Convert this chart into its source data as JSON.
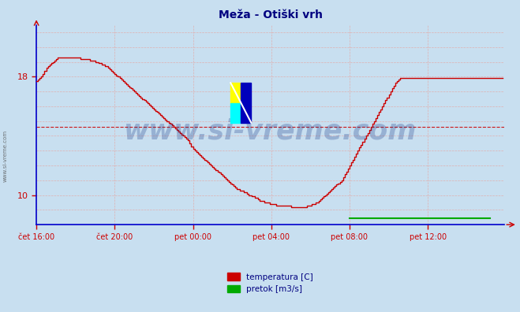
{
  "title": "Meža - Otiški vrh",
  "title_color": "#000080",
  "title_fontsize": 10,
  "bg_color": "#c8dff0",
  "plot_bg_color": "#c8dff0",
  "axis_color": "#0000cc",
  "tick_color": "#cc0000",
  "label_color": "#000080",
  "x_tick_labels": [
    "čet 16:00",
    "čet 20:00",
    "pet 00:00",
    "pet 04:00",
    "pet 08:00",
    "pet 12:00"
  ],
  "x_tick_positions": [
    0,
    48,
    96,
    144,
    192,
    240
  ],
  "yticks": [
    10,
    18
  ],
  "ylim": [
    8.0,
    21.5
  ],
  "xlim": [
    0,
    287
  ],
  "avg_line_y": 14.6,
  "avg_line_color": "#cc0000",
  "watermark": "www.si-vreme.com",
  "watermark_color": "#1a3a8a",
  "watermark_alpha": 0.28,
  "legend_labels": [
    "temperatura [C]",
    "pretok [m3/s]"
  ],
  "legend_colors": [
    "#cc0000",
    "#00aa00"
  ],
  "temp_color": "#cc0000",
  "flow_color": "#00aa00",
  "temp_linewidth": 1.0,
  "flow_linewidth": 1.5,
  "temp_data": [
    17.7,
    17.8,
    17.9,
    18.0,
    18.2,
    18.4,
    18.6,
    18.7,
    18.8,
    18.9,
    19.0,
    19.1,
    19.2,
    19.3,
    19.3,
    19.3,
    19.3,
    19.3,
    19.3,
    19.3,
    19.3,
    19.3,
    19.3,
    19.3,
    19.3,
    19.3,
    19.3,
    19.2,
    19.2,
    19.2,
    19.2,
    19.2,
    19.2,
    19.1,
    19.1,
    19.1,
    19.0,
    19.0,
    18.9,
    18.9,
    18.8,
    18.8,
    18.7,
    18.7,
    18.6,
    18.5,
    18.4,
    18.3,
    18.2,
    18.1,
    18.0,
    17.9,
    17.8,
    17.7,
    17.6,
    17.5,
    17.4,
    17.3,
    17.2,
    17.1,
    17.0,
    16.9,
    16.8,
    16.7,
    16.6,
    16.5,
    16.4,
    16.3,
    16.2,
    16.1,
    16.0,
    15.9,
    15.8,
    15.7,
    15.6,
    15.5,
    15.4,
    15.3,
    15.2,
    15.1,
    15.0,
    14.9,
    14.8,
    14.7,
    14.6,
    14.5,
    14.4,
    14.3,
    14.2,
    14.1,
    14.0,
    13.9,
    13.8,
    13.7,
    13.5,
    13.3,
    13.1,
    13.0,
    12.9,
    12.8,
    12.7,
    12.6,
    12.5,
    12.4,
    12.3,
    12.2,
    12.1,
    12.0,
    11.9,
    11.8,
    11.7,
    11.6,
    11.5,
    11.4,
    11.3,
    11.2,
    11.1,
    11.0,
    10.9,
    10.8,
    10.7,
    10.6,
    10.5,
    10.4,
    10.4,
    10.3,
    10.3,
    10.2,
    10.2,
    10.1,
    10.0,
    10.0,
    9.9,
    9.9,
    9.8,
    9.8,
    9.7,
    9.6,
    9.6,
    9.6,
    9.5,
    9.5,
    9.5,
    9.4,
    9.4,
    9.4,
    9.4,
    9.3,
    9.3,
    9.3,
    9.3,
    9.3,
    9.3,
    9.3,
    9.3,
    9.3,
    9.2,
    9.2,
    9.2,
    9.2,
    9.2,
    9.2,
    9.2,
    9.2,
    9.2,
    9.2,
    9.3,
    9.3,
    9.3,
    9.4,
    9.4,
    9.5,
    9.5,
    9.6,
    9.7,
    9.8,
    9.9,
    10.0,
    10.1,
    10.2,
    10.3,
    10.4,
    10.5,
    10.6,
    10.7,
    10.8,
    10.9,
    11.0,
    11.2,
    11.4,
    11.6,
    11.8,
    12.0,
    12.2,
    12.4,
    12.6,
    12.8,
    13.0,
    13.2,
    13.4,
    13.6,
    13.8,
    14.0,
    14.2,
    14.4,
    14.6,
    14.8,
    15.0,
    15.2,
    15.4,
    15.6,
    15.8,
    16.0,
    16.2,
    16.4,
    16.6,
    16.8,
    17.0,
    17.2,
    17.4,
    17.6,
    17.7,
    17.8,
    17.9,
    17.9,
    17.9,
    17.9,
    17.9,
    17.9,
    17.9,
    17.9,
    17.9,
    17.9,
    17.9,
    17.9,
    17.9,
    17.9,
    17.9,
    17.9,
    17.9,
    17.9,
    17.9,
    17.9,
    17.9,
    17.9,
    17.9,
    17.9,
    17.9,
    17.9,
    17.9,
    17.9,
    17.9,
    17.9,
    17.9,
    17.9,
    17.9,
    17.9,
    17.9,
    17.9,
    17.9,
    17.9,
    17.9,
    17.9,
    17.9,
    17.9,
    17.9,
    17.9,
    17.9,
    17.9,
    17.9,
    17.9,
    17.9,
    17.9,
    17.9,
    17.9,
    17.9,
    17.9,
    17.9,
    17.9,
    17.9,
    17.9,
    17.9,
    17.9,
    17.9,
    17.9,
    17.9,
    17.9
  ],
  "flow_x_start": 192,
  "flow_x_end": 278,
  "flow_y": 8.45,
  "vgrid_color": "#e0b0b0",
  "hgrid_color": "#e0b0b0",
  "vgrid_major_color": "#ffffff",
  "side_label": "www.si-vreme.com"
}
